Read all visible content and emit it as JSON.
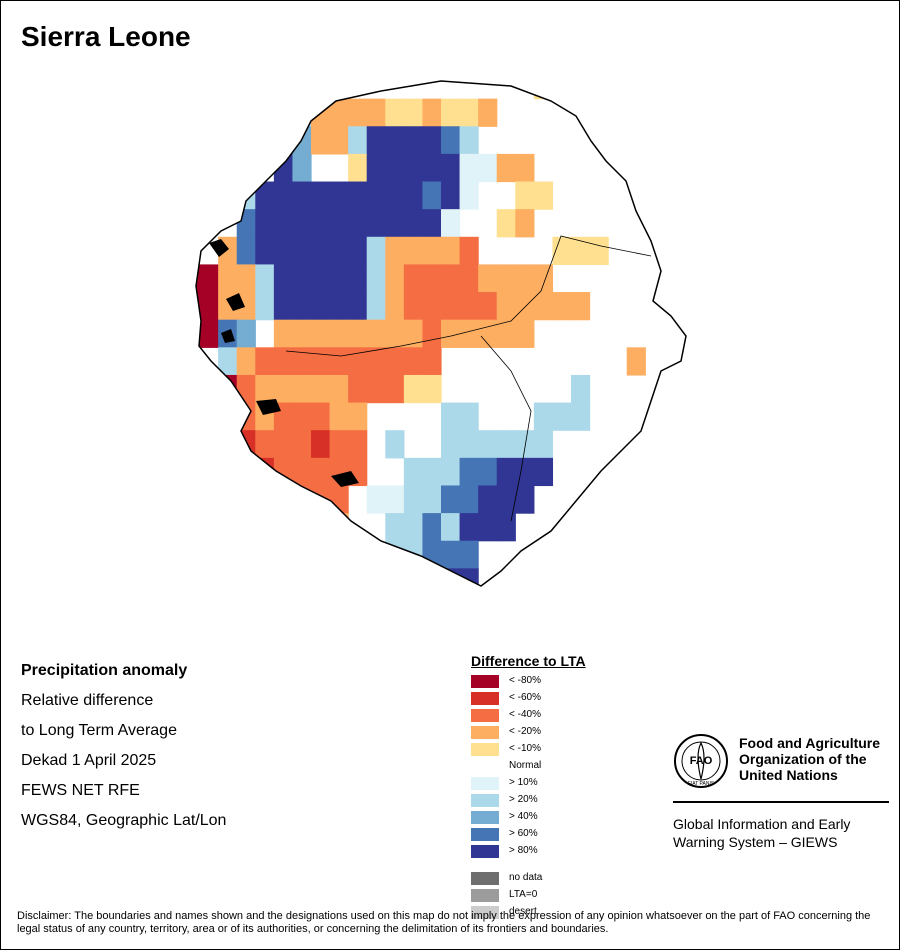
{
  "title": "Sierra Leone",
  "info": {
    "heading": "Precipitation anomaly",
    "lines": [
      "Relative difference",
      "to Long Term Average",
      "Dekad 1 April 2025",
      "FEWS NET RFE",
      "WGS84, Geographic Lat/Lon"
    ]
  },
  "legend": {
    "title": "Difference to LTA",
    "items": [
      {
        "label": "< -80%",
        "color": "#a50026"
      },
      {
        "label": "< -60%",
        "color": "#d73027"
      },
      {
        "label": "< -40%",
        "color": "#f46d43"
      },
      {
        "label": "< -20%",
        "color": "#fdae61"
      },
      {
        "label": "< -10%",
        "color": "#fee090"
      },
      {
        "label": "Normal",
        "color": "#ffffff"
      },
      {
        "label": "> 10%",
        "color": "#e0f3f8"
      },
      {
        "label": "> 20%",
        "color": "#abd9e9"
      },
      {
        "label": "> 40%",
        "color": "#74add1"
      },
      {
        "label": "> 60%",
        "color": "#4575b4"
      },
      {
        "label": "> 80%",
        "color": "#313695"
      }
    ],
    "extra": [
      {
        "label": "no data",
        "color": "#6e6e6e"
      },
      {
        "label": "LTA=0",
        "color": "#9c9c9c"
      },
      {
        "label": "desert",
        "color": "#cccccc"
      }
    ]
  },
  "fao": {
    "name": "Food and Agriculture Organization of the United Nations",
    "logo_text": "FAO",
    "logo_motto": "FIAT PANIS",
    "giews": "Global Information and Early Warning System – GIEWS"
  },
  "disclaimer": "Disclaimer: The boundaries and names shown and the designations used on this map do not imply the expression of any opinion whatsoever on the part of FAO concerning the legal status of any country, territory, area or of its authorities, or concerning the delimitation of its frontiers and boundaries.",
  "map": {
    "country": "Sierra Leone",
    "palette": {
      "a": "#a50026",
      "b": "#d73027",
      "c": "#f46d43",
      "d": "#fdae61",
      "e": "#fee090",
      "f": "#e0f3f8",
      "g": "#abd9e9",
      "h": "#74add1",
      "i": "#4575b4",
      "j": "#313695"
    },
    "grid_rows": [
      "...................e........",
      ".....ggddddeedeed...........",
      ".....jhddgjjjjig............",
      ".....jh..ejjjjjffdd.........",
      "...gjjjjjjjjjijf..ee........",
      "...ijjjjjjjjjjf..ed.........",
      "..dijjjjjjgddddc....eee.....",
      "aaddgjjjjjgdccccdddd........",
      "aaddgjjjjjgdcccccddddd......",
      "aaih.ddddddddcddddd.........",
      "..gdcccccccccc..........d...",
      "..acdddddcccee.......g......",
      "..acdcccdd....gg...ggg......",
      "..bbcccbcc.g..gggggg........",
      "..bbbccccc..gggiijjj........",
      "....bcccc.ffggiijjj.........",
      "......ddd..ggigjjj..........",
      "...........ggiii............",
      "..............jj............"
    ]
  }
}
